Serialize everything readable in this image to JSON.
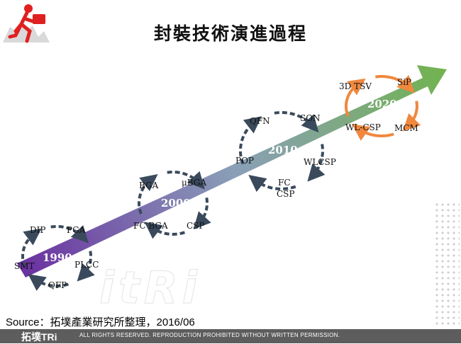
{
  "title": "封裝技術演進過程",
  "source": "Source：拓墣產業研究所整理，2016/06",
  "footer": {
    "brand": "拓墣TRi",
    "notice": "ALL RIGHTS RESERVED. REPRODUCTION PROHIBITED WITHOUT WRITTEN PERMISSION.",
    "watermark": "itRi"
  },
  "colors": {
    "arrow_start": "#6a2fa0",
    "arrow_end": "#71b34e",
    "cycle_arrow": "#3a4a5c",
    "cycle_arrow_2020": "#f0883e",
    "logo_red": "#e02020"
  },
  "eras": [
    {
      "year": "1990",
      "technologies": [
        "DIP",
        "PGA",
        "PLCC",
        "QFP",
        "SMT"
      ]
    },
    {
      "year": "2000",
      "technologies": [
        "BGA",
        "μBGA",
        "CSP",
        "FC BGA"
      ]
    },
    {
      "year": "2010",
      "technologies": [
        "QFN",
        "SON",
        "WLCSP",
        "FC CSP",
        "POP"
      ]
    },
    {
      "year": "2020",
      "technologies": [
        "3D TSV",
        "SiP",
        "MCM",
        "WL-CSP"
      ]
    }
  ],
  "icons": {
    "logo": "running-man-briefcase-icon"
  }
}
